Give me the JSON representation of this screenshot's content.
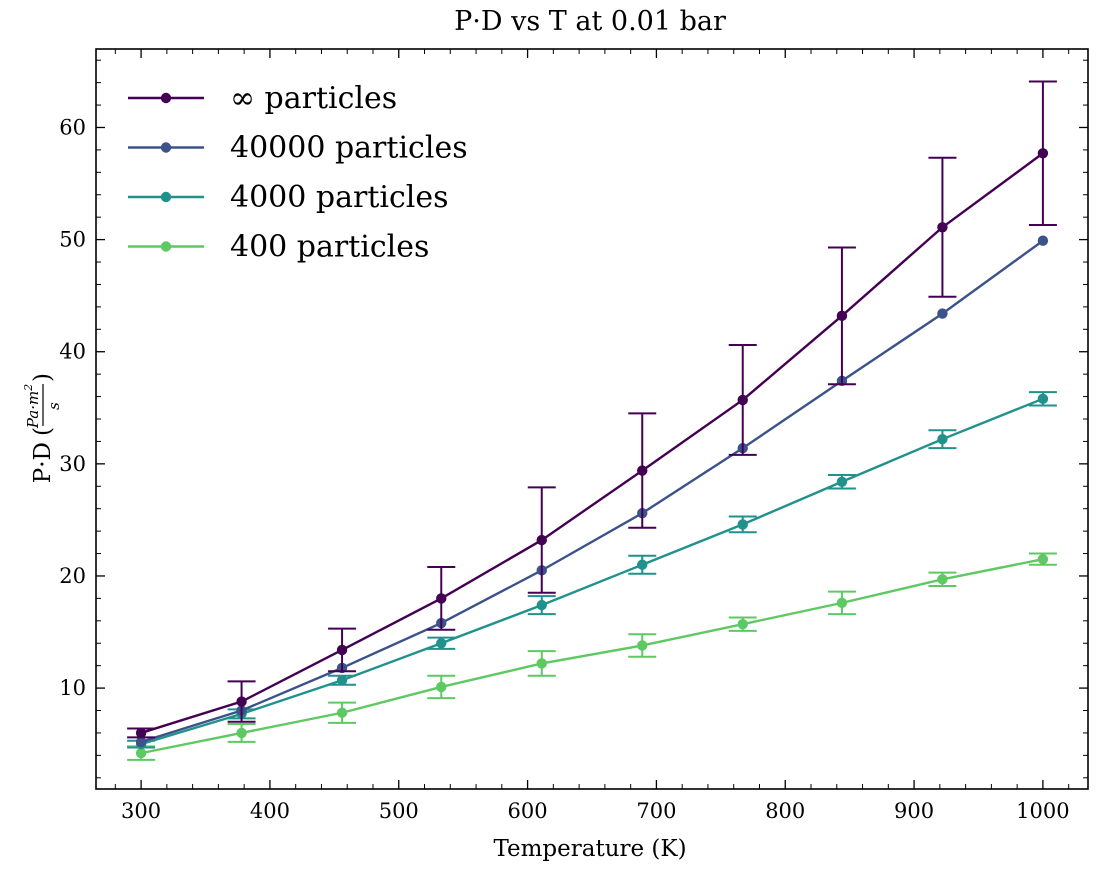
{
  "chart_data": {
    "type": "line",
    "title": "P·D vs T at 0.01 bar",
    "xlabel": "Temperature (K)",
    "ylabel": "P·D",
    "ylabel_unit": {
      "numerator": "Pa·m",
      "exponent": "2",
      "denominator": "s"
    },
    "xlim": [
      265,
      1035
    ],
    "ylim": [
      1,
      67
    ],
    "xticks": [
      300,
      400,
      500,
      600,
      700,
      800,
      900,
      1000
    ],
    "yticks": [
      10,
      20,
      30,
      40,
      50,
      60
    ],
    "grid": false,
    "legend_position": "top-left",
    "x": [
      300,
      378,
      456,
      533,
      611,
      689,
      767,
      844,
      922,
      1000
    ],
    "series": [
      {
        "name": "∞ particles",
        "color": "#440154",
        "values": [
          6.0,
          8.8,
          13.4,
          18.0,
          23.2,
          29.4,
          35.7,
          43.2,
          51.1,
          57.7
        ],
        "errors": [
          0.4,
          1.8,
          1.9,
          2.8,
          4.7,
          5.1,
          4.9,
          6.1,
          6.2,
          6.4
        ]
      },
      {
        "name": "40000 particles",
        "color": "#3b528b",
        "values": [
          5.2,
          8.0,
          11.8,
          15.8,
          20.5,
          25.6,
          31.4,
          37.4,
          43.4,
          49.9
        ],
        "errors": null
      },
      {
        "name": "4000 particles",
        "color": "#21918c",
        "values": [
          5.0,
          7.7,
          10.7,
          14.0,
          17.4,
          21.0,
          24.6,
          28.4,
          32.2,
          35.8
        ],
        "errors": [
          0.3,
          0.4,
          0.4,
          0.5,
          0.8,
          0.8,
          0.7,
          0.6,
          0.8,
          0.6
        ]
      },
      {
        "name": "400 particles",
        "color": "#5ec962",
        "values": [
          4.2,
          6.0,
          7.8,
          10.1,
          12.2,
          13.8,
          15.7,
          17.6,
          19.7,
          21.5
        ],
        "errors": [
          0.6,
          0.8,
          0.9,
          1.0,
          1.1,
          1.0,
          0.6,
          1.0,
          0.6,
          0.5
        ]
      }
    ]
  }
}
